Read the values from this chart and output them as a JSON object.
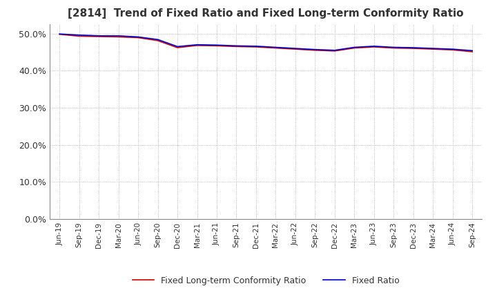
{
  "title": "[2814]  Trend of Fixed Ratio and Fixed Long-term Conformity Ratio",
  "title_fontsize": 11,
  "legend_entries": [
    "Fixed Ratio",
    "Fixed Long-term Conformity Ratio"
  ],
  "line_colors": [
    "#0000CC",
    "#CC0000"
  ],
  "background_color": "#FFFFFF",
  "plot_bg_color": "#FFFFFF",
  "grid_color": "#AAAAAA",
  "ylim": [
    0.0,
    0.525
  ],
  "yticks": [
    0.0,
    0.1,
    0.2,
    0.3,
    0.4,
    0.5
  ],
  "ytick_labels": [
    "0.0%",
    "10.0%",
    "20.0%",
    "30.0%",
    "40.0%",
    "50.0%"
  ],
  "x_labels": [
    "Jun-19",
    "Sep-19",
    "Dec-19",
    "Mar-20",
    "Jun-20",
    "Sep-20",
    "Dec-20",
    "Mar-21",
    "Jun-21",
    "Sep-21",
    "Dec-21",
    "Mar-22",
    "Jun-22",
    "Sep-22",
    "Dec-22",
    "Mar-23",
    "Jun-23",
    "Sep-23",
    "Dec-23",
    "Mar-24",
    "Jun-24",
    "Sep-24"
  ],
  "fixed_ratio": [
    0.499,
    0.496,
    0.494,
    0.494,
    0.491,
    0.484,
    0.465,
    0.47,
    0.469,
    0.467,
    0.466,
    0.463,
    0.46,
    0.457,
    0.455,
    0.463,
    0.466,
    0.463,
    0.462,
    0.46,
    0.458,
    0.454
  ],
  "fixed_lt_ratio": [
    0.498,
    0.493,
    0.492,
    0.491,
    0.489,
    0.481,
    0.462,
    0.468,
    0.467,
    0.465,
    0.464,
    0.461,
    0.458,
    0.455,
    0.453,
    0.461,
    0.464,
    0.461,
    0.46,
    0.458,
    0.456,
    0.451
  ]
}
